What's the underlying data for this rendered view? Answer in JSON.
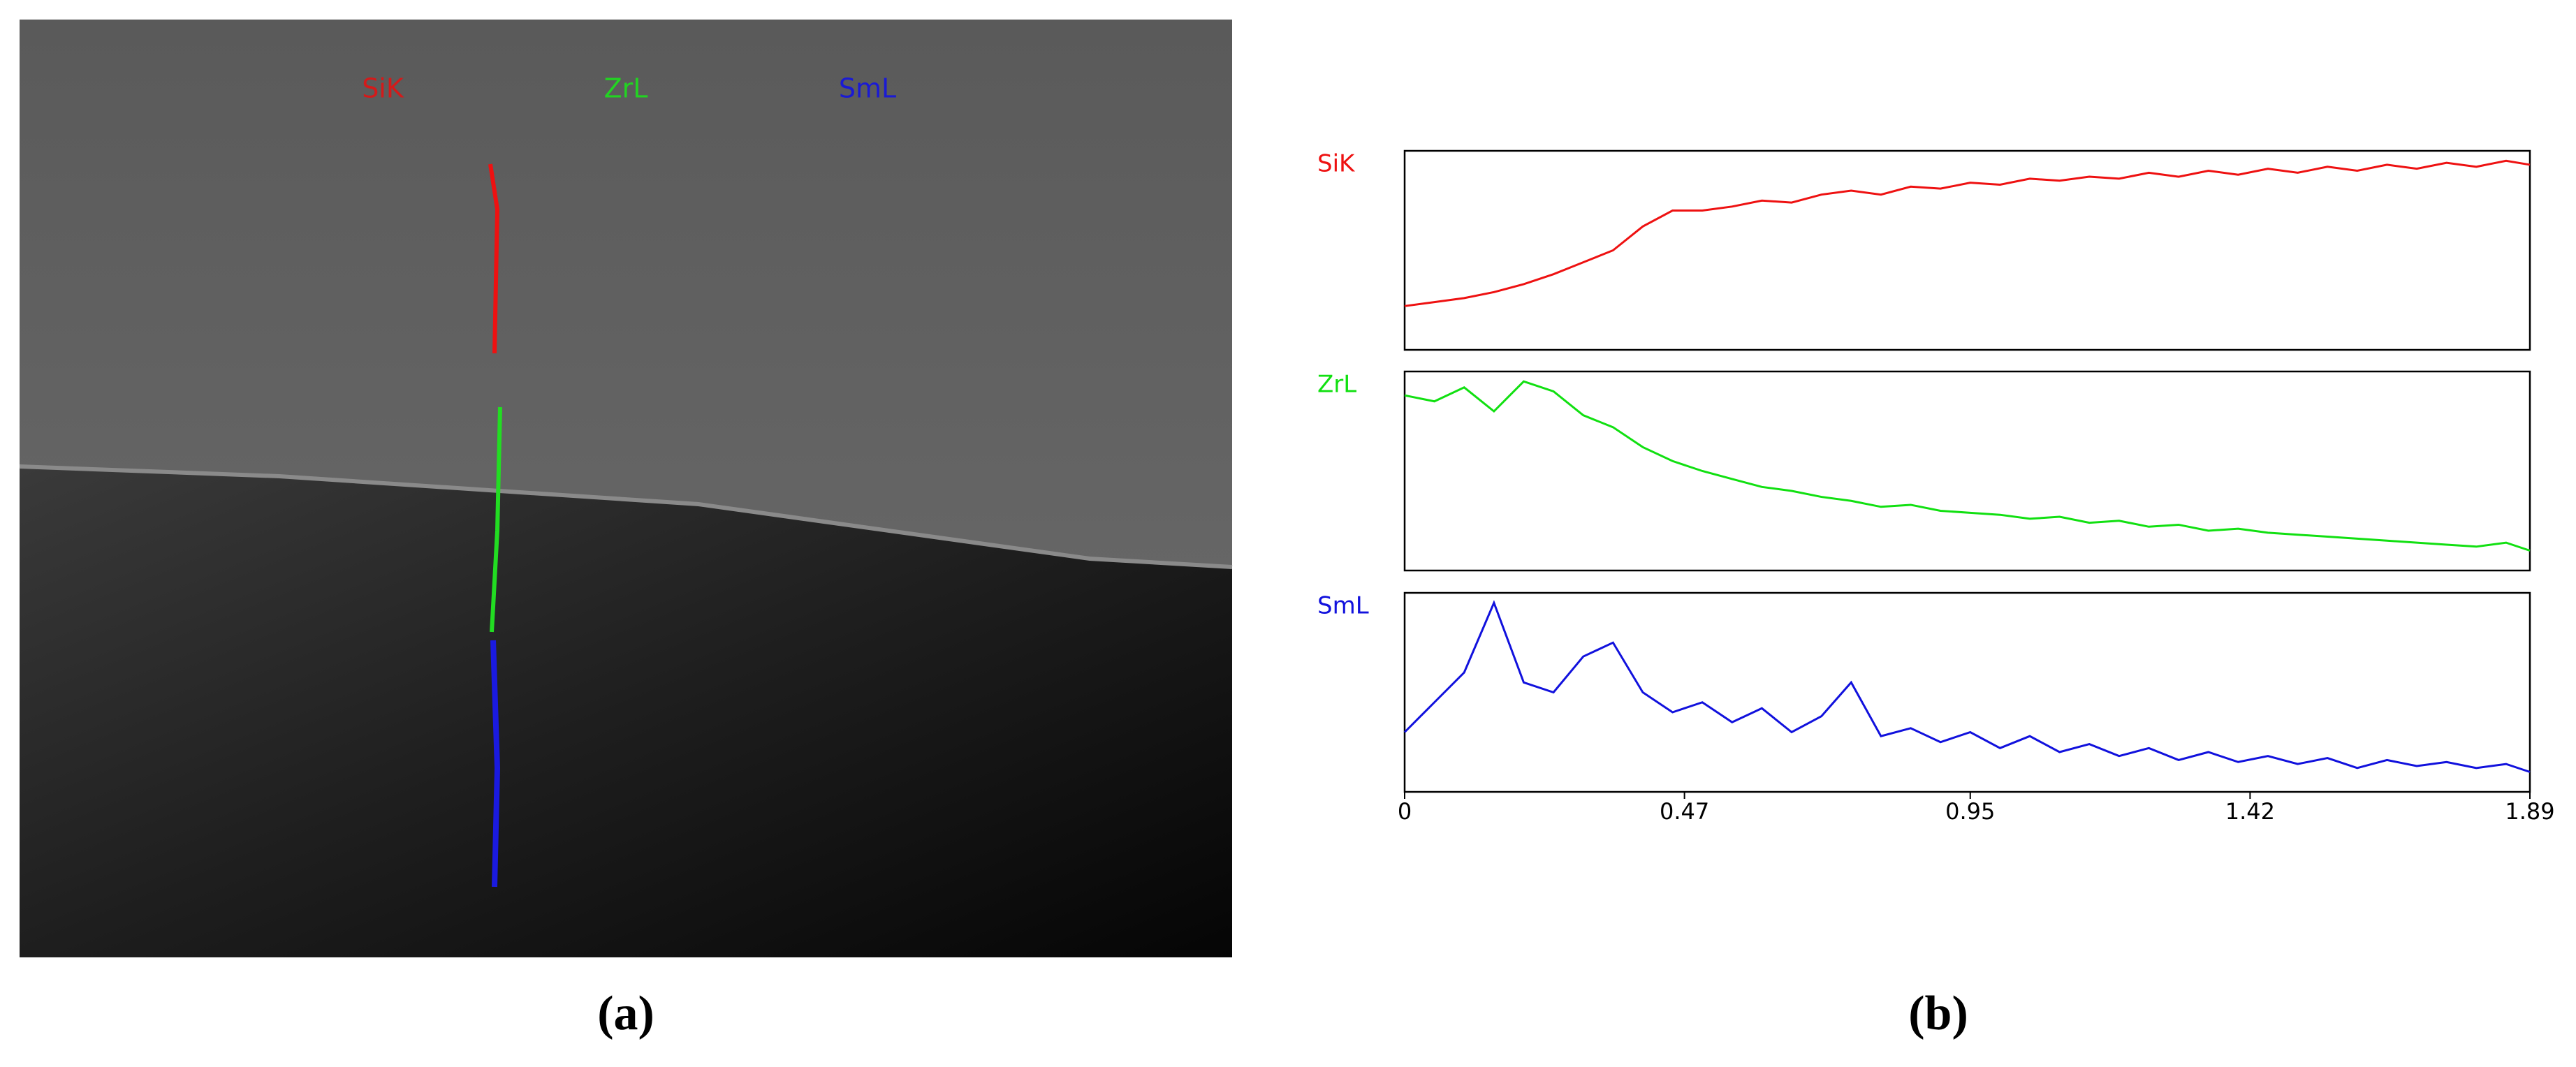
{
  "image": {
    "labels": [
      {
        "text": "SiK",
        "color": "#d41a1a"
      },
      {
        "text": "ZrL",
        "color": "#22d422"
      },
      {
        "text": "SmL",
        "color": "#1a1ad4"
      }
    ]
  },
  "chart_data": [
    {
      "type": "line",
      "label": "SiK",
      "color": "#ee1111",
      "x": [
        0,
        0.05,
        0.1,
        0.15,
        0.2,
        0.25,
        0.3,
        0.35,
        0.4,
        0.45,
        0.5,
        0.55,
        0.6,
        0.65,
        0.7,
        0.75,
        0.8,
        0.85,
        0.9,
        0.95,
        1.0,
        1.05,
        1.1,
        1.15,
        1.2,
        1.25,
        1.3,
        1.35,
        1.4,
        1.45,
        1.5,
        1.55,
        1.6,
        1.65,
        1.7,
        1.75,
        1.8,
        1.85,
        1.89
      ],
      "values": [
        22,
        24,
        26,
        29,
        33,
        38,
        44,
        50,
        62,
        70,
        70,
        72,
        75,
        74,
        78,
        80,
        78,
        82,
        81,
        84,
        83,
        86,
        85,
        87,
        86,
        89,
        87,
        90,
        88,
        91,
        89,
        92,
        90,
        93,
        91,
        94,
        92,
        95,
        93
      ],
      "xlim": [
        0,
        1.89
      ],
      "ylim": [
        0,
        100
      ]
    },
    {
      "type": "line",
      "label": "ZrL",
      "color": "#11e011",
      "x": [
        0,
        0.05,
        0.1,
        0.15,
        0.2,
        0.25,
        0.3,
        0.35,
        0.4,
        0.45,
        0.5,
        0.55,
        0.6,
        0.65,
        0.7,
        0.75,
        0.8,
        0.85,
        0.9,
        0.95,
        1.0,
        1.05,
        1.1,
        1.15,
        1.2,
        1.25,
        1.3,
        1.35,
        1.4,
        1.45,
        1.5,
        1.55,
        1.6,
        1.65,
        1.7,
        1.75,
        1.8,
        1.85,
        1.89
      ],
      "values": [
        88,
        85,
        92,
        80,
        95,
        90,
        78,
        72,
        62,
        55,
        50,
        46,
        42,
        40,
        37,
        35,
        32,
        33,
        30,
        29,
        28,
        26,
        27,
        24,
        25,
        22,
        23,
        20,
        21,
        19,
        18,
        17,
        16,
        15,
        14,
        13,
        12,
        14,
        10
      ],
      "xlim": [
        0,
        1.89
      ],
      "ylim": [
        0,
        100
      ]
    },
    {
      "type": "line",
      "label": "SmL",
      "color": "#1111dd",
      "x": [
        0,
        0.05,
        0.1,
        0.15,
        0.2,
        0.25,
        0.3,
        0.35,
        0.4,
        0.45,
        0.5,
        0.55,
        0.6,
        0.65,
        0.7,
        0.75,
        0.8,
        0.85,
        0.9,
        0.95,
        1.0,
        1.05,
        1.1,
        1.15,
        1.2,
        1.25,
        1.3,
        1.35,
        1.4,
        1.45,
        1.5,
        1.55,
        1.6,
        1.65,
        1.7,
        1.75,
        1.8,
        1.85,
        1.89
      ],
      "values": [
        30,
        45,
        60,
        95,
        55,
        50,
        68,
        75,
        50,
        40,
        45,
        35,
        42,
        30,
        38,
        55,
        28,
        32,
        25,
        30,
        22,
        28,
        20,
        24,
        18,
        22,
        16,
        20,
        15,
        18,
        14,
        17,
        12,
        16,
        13,
        15,
        12,
        14,
        10
      ],
      "xlim": [
        0,
        1.89
      ],
      "ylim": [
        0,
        100
      ],
      "xticks": [
        0,
        0.47,
        0.95,
        1.42,
        1.89
      ]
    }
  ],
  "captions": [
    "(a)",
    "(b)"
  ]
}
